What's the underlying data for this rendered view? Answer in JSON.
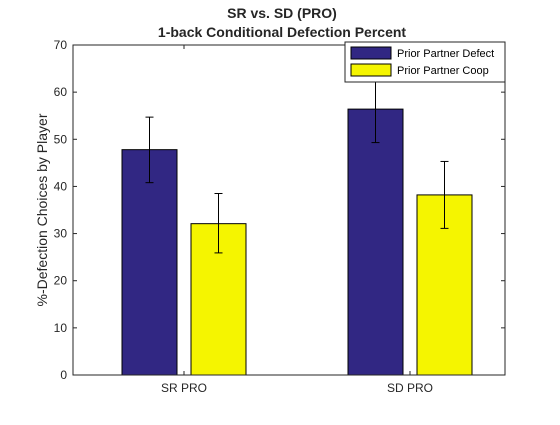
{
  "chart_data": {
    "type": "bar",
    "title": "SR vs. SD (PRO)",
    "subtitle": "1-back Conditional Defection Percent",
    "xlabel": "",
    "ylabel": "%-Defection Choices by Player",
    "categories": [
      "SR PRO",
      "SD PRO"
    ],
    "ylim": [
      0,
      70
    ],
    "yticks": [
      0,
      10,
      20,
      30,
      40,
      50,
      60,
      70
    ],
    "grid": false,
    "legend_position": "top-right",
    "series": [
      {
        "name": "Prior Partner Defect",
        "color": "#312783",
        "values": [
          47.8,
          56.4
        ],
        "error_low": [
          40.8,
          49.3
        ],
        "error_high": [
          54.7,
          63.4
        ]
      },
      {
        "name": "Prior Partner Coop",
        "color": "#F5F500",
        "values": [
          32.1,
          38.2
        ],
        "error_low": [
          25.9,
          31.1
        ],
        "error_high": [
          38.5,
          45.3
        ]
      }
    ]
  }
}
